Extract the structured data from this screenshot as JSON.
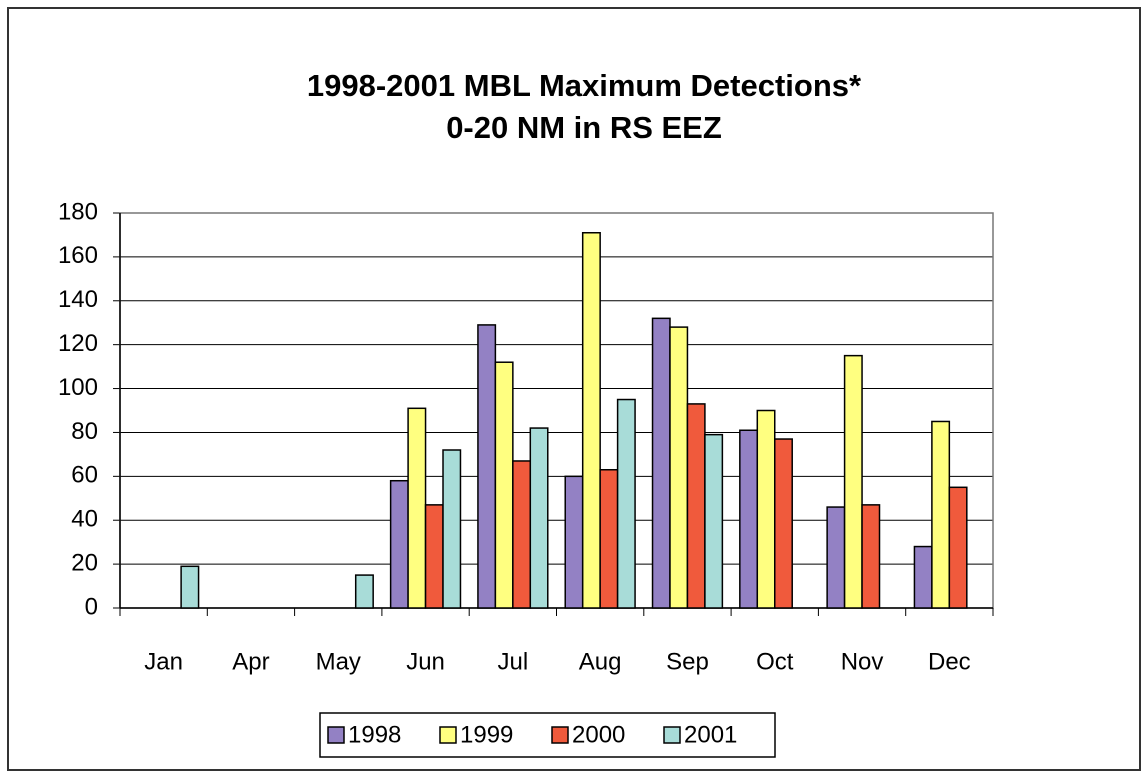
{
  "chart_data": {
    "type": "bar",
    "title": "1998-2001 MBL Maximum Detections*",
    "subtitle": "0-20 NM in RS EEZ",
    "categories": [
      "Jan",
      "Apr",
      "May",
      "Jun",
      "Jul",
      "Aug",
      "Sep",
      "Oct",
      "Nov",
      "Dec"
    ],
    "series": [
      {
        "name": "1998",
        "color": "#9381c4",
        "values": [
          null,
          null,
          null,
          58,
          129,
          60,
          132,
          81,
          46,
          28
        ]
      },
      {
        "name": "1999",
        "color": "#ffff80",
        "values": [
          null,
          null,
          null,
          91,
          112,
          171,
          128,
          90,
          115,
          85
        ]
      },
      {
        "name": "2000",
        "color": "#f05a3c",
        "values": [
          null,
          null,
          null,
          47,
          67,
          63,
          93,
          77,
          47,
          55
        ]
      },
      {
        "name": "2001",
        "color": "#a8dcd8",
        "values": [
          19,
          null,
          15,
          72,
          82,
          95,
          79,
          null,
          null,
          null
        ]
      }
    ],
    "ylim": [
      0,
      180
    ],
    "yticks": [
      0,
      20,
      40,
      60,
      80,
      100,
      120,
      140,
      160,
      180
    ],
    "grid": true,
    "legend": "bottom"
  }
}
